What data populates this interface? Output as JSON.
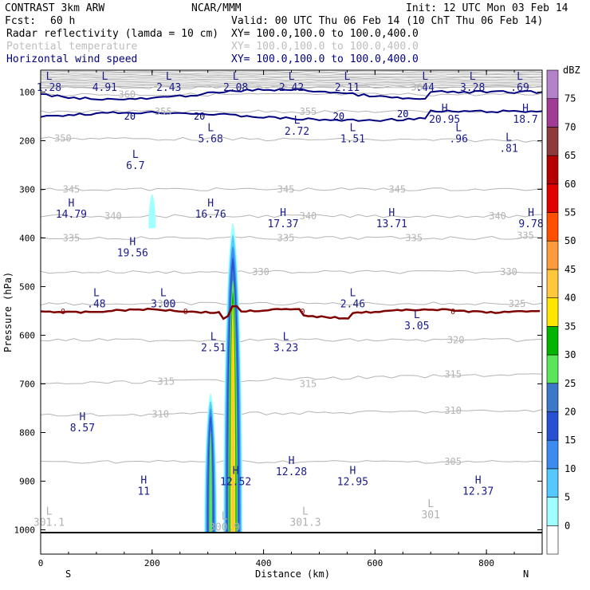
{
  "header": {
    "model": "CONTRAST  3km ARW",
    "center": "NCAR/MMM",
    "init": "Init: 12 UTC Mon 03 Feb 14",
    "fcst_label": "Fcst:",
    "fcst_value": "60 h",
    "valid": "Valid: 00 UTC Thu 06 Feb 14 (10 ChT Thu 06 Feb 14)",
    "fields": [
      {
        "name": "Radar reflectivity (lamda = 10 cm)",
        "xy": "XY= 100.0,100.0 to 100.0,400.0",
        "color": "#000000"
      },
      {
        "name": "Potential temperature",
        "xy": "XY= 100.0,100.0 to 100.0,400.0",
        "color": "#bdbdbd"
      },
      {
        "name": "Horizontal wind speed",
        "xy": "XY= 100.0,100.0 to 100.0,400.0",
        "color": "#00007f"
      }
    ]
  },
  "chart_data": {
    "type": "cross-section",
    "xlabel": "Distance (km)",
    "ylabel": "Pressure (hPa)",
    "xlim": [
      0,
      900
    ],
    "ylim": [
      1050,
      55
    ],
    "x_ticks": [
      0,
      200,
      400,
      600,
      800
    ],
    "x_tick_labels": [
      "0",
      "200",
      "400",
      "600",
      "800"
    ],
    "y_ticks": [
      100,
      200,
      300,
      400,
      500,
      600,
      700,
      800,
      900,
      1000
    ],
    "y_tick_labels": [
      "100",
      "200",
      "300",
      "400",
      "500",
      "600",
      "700",
      "800",
      "900",
      "1000"
    ],
    "left_end_label": "S",
    "right_end_label": "N",
    "colorbar": {
      "unit": "dBZ",
      "levels": [
        0,
        5,
        10,
        15,
        20,
        25,
        30,
        35,
        40,
        45,
        50,
        55,
        60,
        65,
        70,
        75
      ],
      "labels": [
        "0",
        "5",
        "10",
        "15",
        "20",
        "25",
        "30",
        "35",
        "40",
        "45",
        "50",
        "55",
        "60",
        "65",
        "70",
        "75"
      ],
      "colors": [
        "#ffffff",
        "#a0ffff",
        "#55c8ff",
        "#3c8cf0",
        "#2850d2",
        "#3c78c8",
        "#5ae65a",
        "#00b400",
        "#ffe600",
        "#ffc83c",
        "#ff9b3c",
        "#ff5000",
        "#e10000",
        "#b40000",
        "#8c3a3a",
        "#a03c96",
        "#b482c8"
      ]
    },
    "theta_contours": [
      {
        "label": "360",
        "p_at": [
          [
            0,
            105
          ],
          [
            900,
            105
          ]
        ],
        "label_x": 155
      },
      {
        "label": "365",
        "p_at": [
          [
            0,
            90
          ],
          [
            900,
            90
          ]
        ],
        "label_x": 680
      },
      {
        "label": "355",
        "p_at": [
          [
            0,
            140
          ],
          [
            900,
            140
          ]
        ],
        "label_x": 220
      },
      {
        "label": "350",
        "p_at": [
          [
            0,
            195
          ],
          [
            900,
            200
          ]
        ],
        "label_x": 40
      },
      {
        "label": "345",
        "p_at": [
          [
            0,
            300
          ],
          [
            900,
            300
          ]
        ],
        "label_x": 55
      },
      {
        "label": "340",
        "p_at": [
          [
            0,
            355
          ],
          [
            900,
            355
          ]
        ],
        "label_x": 130
      },
      {
        "label": "335",
        "p_at": [
          [
            0,
            400
          ],
          [
            900,
            400
          ]
        ],
        "label_x": 55
      },
      {
        "label": "330",
        "p_at": [
          [
            0,
            470
          ],
          [
            900,
            470
          ]
        ],
        "label_x": 395
      },
      {
        "label": "325",
        "p_at": [
          [
            0,
            535
          ],
          [
            900,
            535
          ]
        ],
        "label_x": 225
      },
      {
        "label": "320",
        "p_at": [
          [
            0,
            610
          ],
          [
            900,
            610
          ]
        ],
        "label_x": 745
      },
      {
        "label": "315",
        "p_at": [
          [
            0,
            700
          ],
          [
            900,
            680
          ]
        ],
        "label_x": 225
      },
      {
        "label": "310",
        "p_at": [
          [
            0,
            765
          ],
          [
            900,
            755
          ]
        ],
        "label_x": 215
      },
      {
        "label": "305",
        "p_at": [
          [
            0,
            860
          ],
          [
            900,
            860
          ]
        ],
        "label_x": 740
      }
    ],
    "wind_contours": [
      {
        "label": "20",
        "values": "jet core near 100-160 hPa"
      }
    ],
    "freezing_line": {
      "label": "0",
      "p_approx": 550
    },
    "hl_markers": [
      {
        "type": "L",
        "value": "1.28",
        "x": 15,
        "p": 75
      },
      {
        "type": "L",
        "value": "4.91",
        "x": 115,
        "p": 75
      },
      {
        "type": "L",
        "value": "2.43",
        "x": 230,
        "p": 75
      },
      {
        "type": "L",
        "value": "2.08",
        "x": 350,
        "p": 75
      },
      {
        "type": "L",
        "value": "2.42",
        "x": 450,
        "p": 75
      },
      {
        "type": "L",
        "value": "2.11",
        "x": 550,
        "p": 75
      },
      {
        "type": "L",
        "value": ".44",
        "x": 690,
        "p": 75
      },
      {
        "type": "L",
        "value": "3.28",
        "x": 775,
        "p": 75
      },
      {
        "type": "L",
        "value": ".69",
        "x": 860,
        "p": 75
      },
      {
        "type": "H",
        "value": "20.95",
        "x": 725,
        "p": 140
      },
      {
        "type": "H",
        "value": "18.7",
        "x": 870,
        "p": 140
      },
      {
        "type": "L",
        "value": "5.68",
        "x": 305,
        "p": 180
      },
      {
        "type": "L",
        "value": "2.72",
        "x": 460,
        "p": 165
      },
      {
        "type": "L",
        "value": "1.51",
        "x": 560,
        "p": 180
      },
      {
        "type": "L",
        "value": ".96",
        "x": 750,
        "p": 180
      },
      {
        "type": "L",
        "value": ".81",
        "x": 840,
        "p": 200
      },
      {
        "type": "L",
        "value": "6.7",
        "x": 170,
        "p": 235
      },
      {
        "type": "H",
        "value": "14.79",
        "x": 55,
        "p": 335
      },
      {
        "type": "H",
        "value": "16.76",
        "x": 305,
        "p": 335
      },
      {
        "type": "H",
        "value": "17.37",
        "x": 435,
        "p": 355
      },
      {
        "type": "H",
        "value": "13.71",
        "x": 630,
        "p": 355
      },
      {
        "type": "H",
        "value": "9.78",
        "x": 880,
        "p": 355
      },
      {
        "type": "H",
        "value": "19.56",
        "x": 165,
        "p": 415
      },
      {
        "type": "L",
        "value": ".48",
        "x": 100,
        "p": 520
      },
      {
        "type": "L",
        "value": "3.00",
        "x": 220,
        "p": 520
      },
      {
        "type": "L",
        "value": "2.46",
        "x": 560,
        "p": 520
      },
      {
        "type": "L",
        "value": "3.05",
        "x": 675,
        "p": 565
      },
      {
        "type": "L",
        "value": "2.51",
        "x": 310,
        "p": 610
      },
      {
        "type": "L",
        "value": "3.23",
        "x": 440,
        "p": 610
      },
      {
        "type": "H",
        "value": "8.57",
        "x": 75,
        "p": 775
      },
      {
        "type": "H",
        "value": "12.28",
        "x": 450,
        "p": 865
      },
      {
        "type": "H",
        "value": "12.52",
        "x": 350,
        "p": 885
      },
      {
        "type": "H",
        "value": "12.95",
        "x": 560,
        "p": 885
      },
      {
        "type": "H",
        "value": "11",
        "x": 185,
        "p": 905
      },
      {
        "type": "H",
        "value": "12.37",
        "x": 785,
        "p": 905
      }
    ],
    "theta_hl_markers": [
      {
        "type": "L",
        "value": "301.1",
        "x": 15,
        "p": 985
      },
      {
        "type": "L",
        "value": "301.3",
        "x": 475,
        "p": 985
      },
      {
        "type": "L",
        "value": "301",
        "x": 700,
        "p": 970
      },
      {
        "type": "L",
        "value": "300.9",
        "x": 330,
        "p": 995
      }
    ],
    "reflectivity_cells": [
      {
        "name": "upper-isolated",
        "x_center": 200,
        "p_top": 310,
        "p_bottom": 380,
        "max_dbz": 5
      },
      {
        "name": "cell-west",
        "x_center": 305,
        "p_top": 720,
        "p_bottom": 1005,
        "max_dbz": 30
      },
      {
        "name": "cell-east",
        "x_center": 345,
        "p_top": 370,
        "p_bottom": 1005,
        "max_dbz": 45
      }
    ]
  }
}
